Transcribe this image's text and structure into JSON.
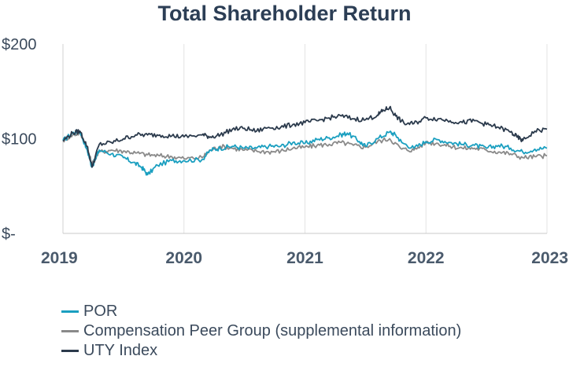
{
  "chart_data": {
    "type": "line",
    "title": "Total Shareholder Return",
    "xlabel": "",
    "ylabel": "",
    "x_range": [
      2019,
      2023
    ],
    "ylim": [
      0,
      200
    ],
    "x_ticks": [
      {
        "value": 2019,
        "label": "2019"
      },
      {
        "value": 2020,
        "label": "2020"
      },
      {
        "value": 2021,
        "label": "2021"
      },
      {
        "value": 2022,
        "label": "2022"
      },
      {
        "value": 2023,
        "label": "2023"
      }
    ],
    "y_ticks": [
      {
        "value": 200,
        "label": "$200"
      },
      {
        "value": 100,
        "label": "$100"
      },
      {
        "value": 0,
        "label": "$-"
      }
    ],
    "legend_position": "bottom-left",
    "series": [
      {
        "name": "POR",
        "color": "#1a9fc0",
        "x": [
          2019.0,
          2019.08,
          2019.14,
          2019.2,
          2019.24,
          2019.3,
          2019.4,
          2019.5,
          2019.58,
          2019.65,
          2019.7,
          2019.78,
          2019.9,
          2020.0,
          2020.15,
          2020.22,
          2020.3,
          2020.4,
          2020.5,
          2020.6,
          2020.7,
          2020.8,
          2020.9,
          2021.0,
          2021.1,
          2021.2,
          2021.3,
          2021.35,
          2021.45,
          2021.5,
          2021.6,
          2021.7,
          2021.75,
          2021.8,
          2021.9,
          2022.0,
          2022.1,
          2022.2,
          2022.3,
          2022.4,
          2022.5,
          2022.6,
          2022.7,
          2022.8,
          2022.9,
          2023.0
        ],
        "y": [
          98,
          106,
          108,
          88,
          70,
          88,
          84,
          80,
          75,
          70,
          62,
          72,
          77,
          77,
          78,
          88,
          90,
          92,
          90,
          90,
          92,
          92,
          96,
          95,
          99,
          101,
          104,
          106,
          97,
          92,
          100,
          107,
          104,
          96,
          90,
          97,
          99,
          96,
          94,
          93,
          90,
          93,
          90,
          86,
          89,
          90
        ]
      },
      {
        "name": "Compensation Peer Group (supplemental information)",
        "color": "#8a8a8a",
        "x": [
          2019.0,
          2019.08,
          2019.14,
          2019.2,
          2019.24,
          2019.3,
          2019.4,
          2019.5,
          2019.6,
          2019.7,
          2019.8,
          2019.9,
          2020.0,
          2020.15,
          2020.22,
          2020.3,
          2020.4,
          2020.5,
          2020.6,
          2020.7,
          2020.8,
          2020.9,
          2021.0,
          2021.1,
          2021.2,
          2021.3,
          2021.4,
          2021.5,
          2021.6,
          2021.7,
          2021.8,
          2021.9,
          2022.0,
          2022.1,
          2022.2,
          2022.3,
          2022.4,
          2022.5,
          2022.6,
          2022.7,
          2022.8,
          2022.9,
          2023.0
        ],
        "y": [
          98,
          104,
          106,
          90,
          73,
          86,
          88,
          87,
          85,
          83,
          82,
          81,
          79,
          80,
          88,
          92,
          90,
          88,
          87,
          86,
          87,
          90,
          91,
          93,
          94,
          96,
          93,
          91,
          97,
          100,
          89,
          88,
          96,
          95,
          92,
          90,
          90,
          88,
          86,
          84,
          80,
          81,
          82
        ]
      },
      {
        "name": "UTY Index",
        "color": "#2b3a4c",
        "x": [
          2019.0,
          2019.08,
          2019.14,
          2019.2,
          2019.24,
          2019.3,
          2019.4,
          2019.5,
          2019.6,
          2019.7,
          2019.8,
          2019.9,
          2020.0,
          2020.15,
          2020.22,
          2020.3,
          2020.4,
          2020.5,
          2020.6,
          2020.7,
          2020.8,
          2020.9,
          2021.0,
          2021.1,
          2021.2,
          2021.3,
          2021.4,
          2021.5,
          2021.6,
          2021.65,
          2021.7,
          2021.75,
          2021.82,
          2021.9,
          2022.0,
          2022.1,
          2022.2,
          2022.3,
          2022.4,
          2022.5,
          2022.6,
          2022.7,
          2022.75,
          2022.8,
          2022.9,
          2023.0
        ],
        "y": [
          98,
          106,
          108,
          92,
          70,
          94,
          96,
          100,
          104,
          104,
          104,
          103,
          102,
          104,
          102,
          104,
          110,
          111,
          108,
          112,
          112,
          115,
          117,
          119,
          122,
          124,
          121,
          120,
          125,
          130,
          133,
          124,
          116,
          116,
          122,
          121,
          119,
          117,
          119,
          115,
          112,
          107,
          102,
          98,
          108,
          110
        ]
      }
    ]
  }
}
